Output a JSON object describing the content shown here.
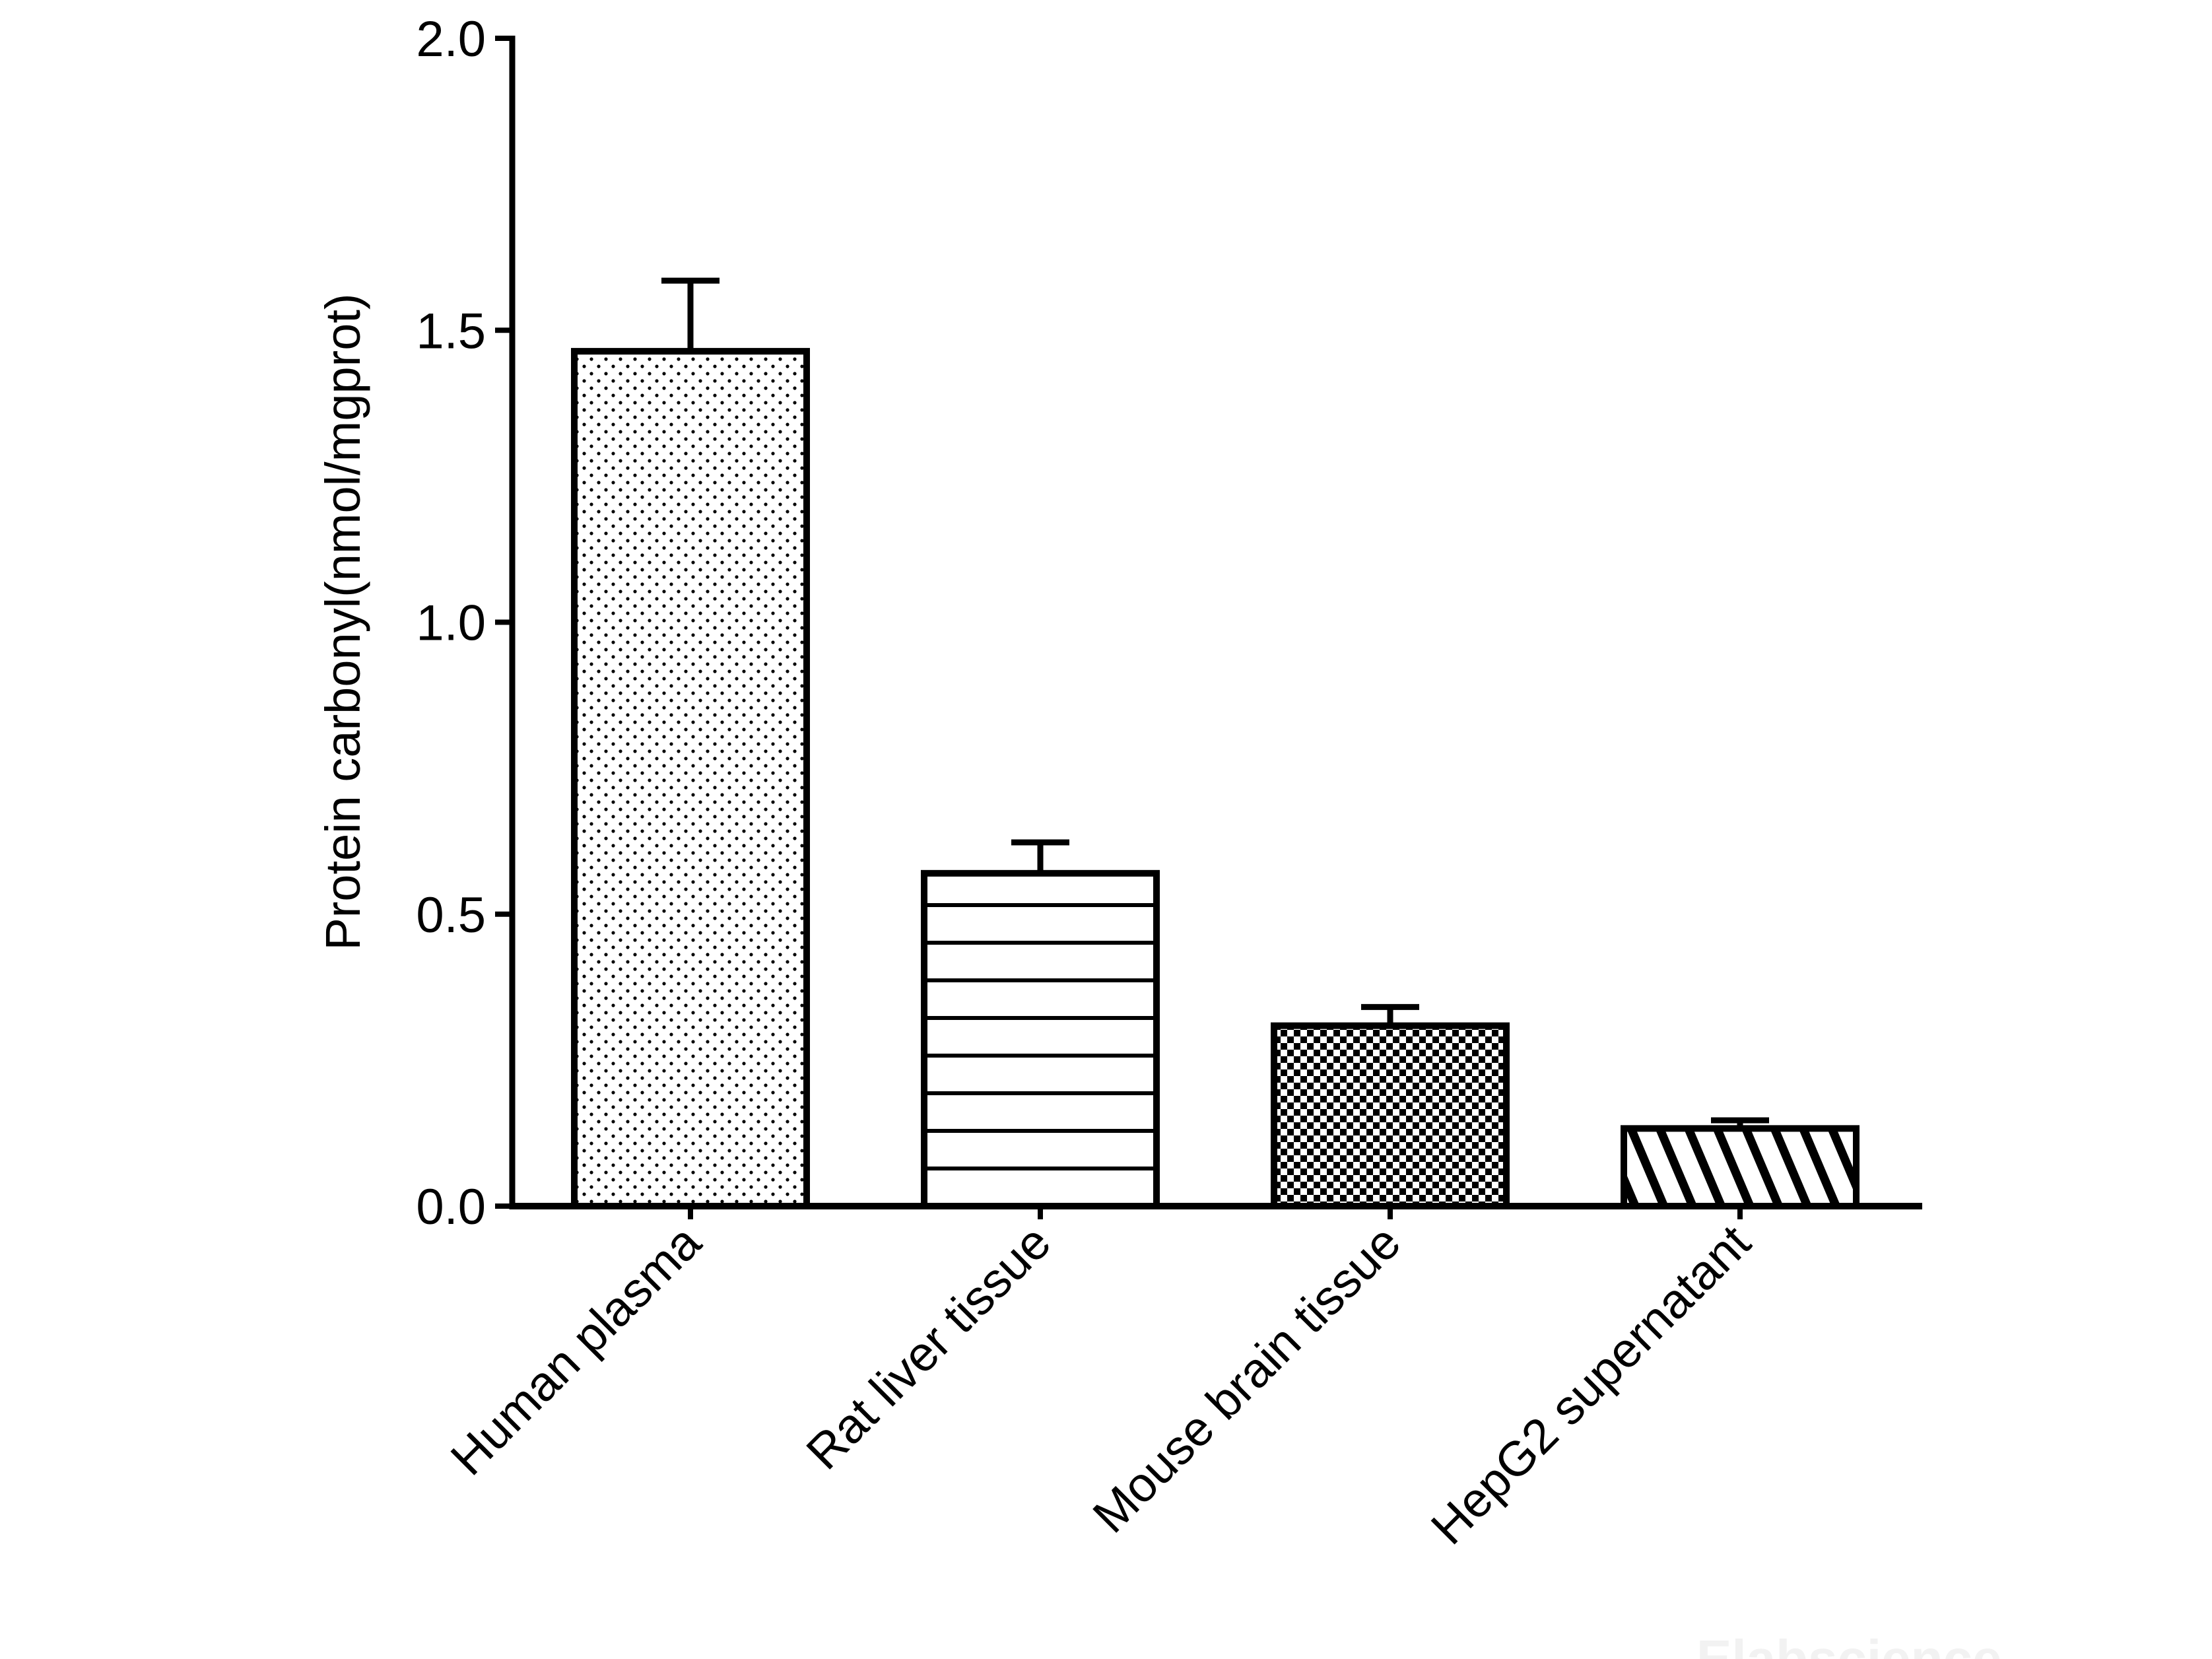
{
  "chart_data": {
    "type": "bar",
    "title": "",
    "xlabel": "",
    "ylabel": "Protein carbonyl(nmol/mgprot)",
    "ylim": [
      0,
      2.0
    ],
    "yticks": [
      "0.0",
      "0.5",
      "1.0",
      "1.5",
      "2.0"
    ],
    "grid": false,
    "categories": [
      "Human plasma",
      "Rat liver tissue",
      "Mouse brain tissue",
      "HepG2 supernatant"
    ],
    "values": [
      1.464,
      0.57,
      0.309,
      0.133
    ],
    "error_upper": [
      1.585,
      0.623,
      0.341,
      0.147
    ],
    "fill_patterns": [
      "dots",
      "horizontal-lines",
      "checkerboard",
      "diagonal-hatch"
    ],
    "colors": {
      "stroke": "#000000",
      "background": "#ffffff"
    }
  },
  "watermark": "Elabscience"
}
